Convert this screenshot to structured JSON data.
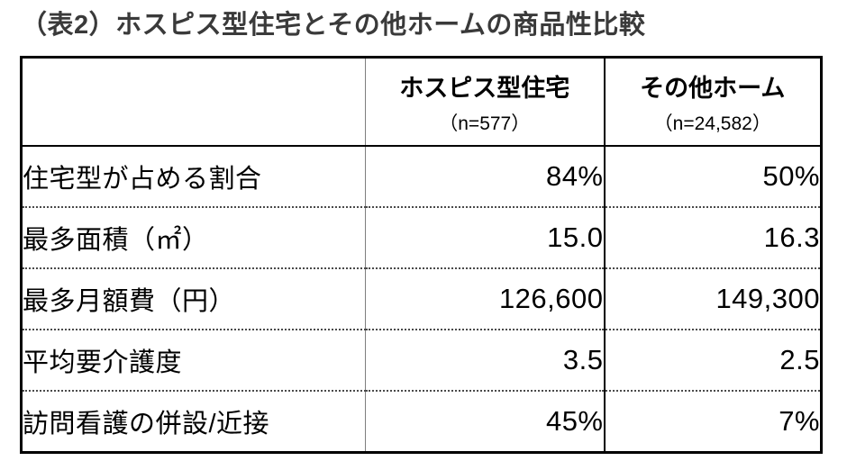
{
  "title": "（表2）ホスピス型住宅とその他ホームの商品性比較",
  "chart_data": {
    "type": "table",
    "title": "（表2）ホスピス型住宅とその他ホームの商品性比較",
    "columns": [
      {
        "label": "",
        "sub": ""
      },
      {
        "label": "ホスピス型住宅",
        "sub": "（n=577）"
      },
      {
        "label": "その他ホーム",
        "sub": "（n=24,582）"
      }
    ],
    "rows": [
      {
        "label": "住宅型が占める割合",
        "values": [
          "84%",
          "50%"
        ]
      },
      {
        "label": "最多面積（㎡）",
        "values": [
          "15.0",
          "16.3"
        ]
      },
      {
        "label": "最多月額費（円）",
        "values": [
          "126,600",
          "149,300"
        ]
      },
      {
        "label": "平均要介護度",
        "values": [
          "3.5",
          "2.5"
        ]
      },
      {
        "label": "訪問看護の併設/近接",
        "values": [
          "45%",
          "7%"
        ]
      }
    ],
    "layout": {
      "value_alignment": "right",
      "row_separator": "dotted",
      "header_separator": "solid",
      "outer_border": "thick-solid"
    }
  },
  "colors": {
    "title_text": "#3a3a3a",
    "table_text": "#000000",
    "outer_border": "#000000",
    "header_divider": "#000000",
    "column_divider_gray": "#7f7f7f",
    "row_dotted_divider": "#4a4a4a",
    "background": "#ffffff"
  }
}
